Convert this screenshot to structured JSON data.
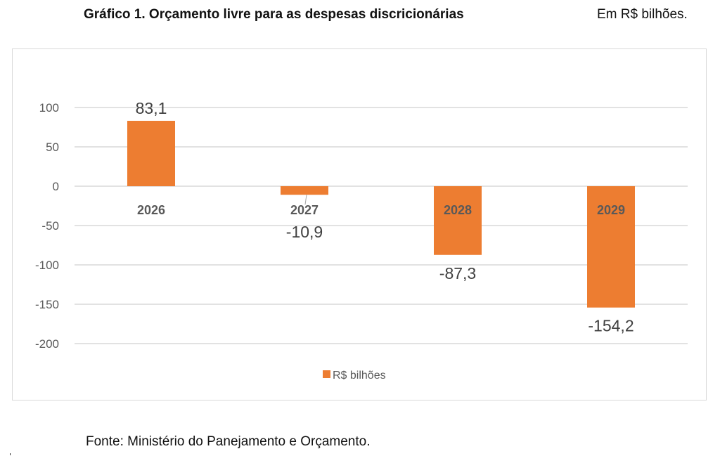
{
  "header": {
    "title": "Gráfico 1. Orçamento livre para as despesas discricionárias",
    "unit_note": "Em R$ bilhões."
  },
  "footer": {
    "source": "Fonte: Ministério do Panejamento e Orçamento."
  },
  "colors": {
    "bar": "#ED7D31",
    "grid": "#D9D9D9",
    "axis_text": "#595959",
    "label_text": "#404040"
  },
  "chart_data": {
    "type": "bar",
    "title": "Gráfico 1. Orçamento livre para as despesas discricionárias",
    "subtitle": "Em R$ bilhões.",
    "xlabel": "",
    "ylabel": "",
    "categories": [
      "2026",
      "2027",
      "2028",
      "2029"
    ],
    "series": [
      {
        "name": "R$ bilhões",
        "values": [
          83.1,
          -10.9,
          -87.3,
          -154.2
        ]
      }
    ],
    "data_labels": [
      "83,1",
      "-10,9",
      "-87,3",
      "-154,2"
    ],
    "ylim": [
      -200,
      100
    ],
    "yticks": [
      100,
      50,
      0,
      -50,
      -100,
      -150,
      -200
    ],
    "ytick_labels": [
      "100",
      "50",
      "0",
      "-50",
      "-100",
      "-150",
      "-200"
    ],
    "grid": true,
    "legend": {
      "position": "bottom",
      "entries": [
        "R$ bilhões"
      ]
    },
    "category_labels_position": "at-zero-line",
    "source": "Fonte: Ministério do Panejamento e Orçamento."
  }
}
